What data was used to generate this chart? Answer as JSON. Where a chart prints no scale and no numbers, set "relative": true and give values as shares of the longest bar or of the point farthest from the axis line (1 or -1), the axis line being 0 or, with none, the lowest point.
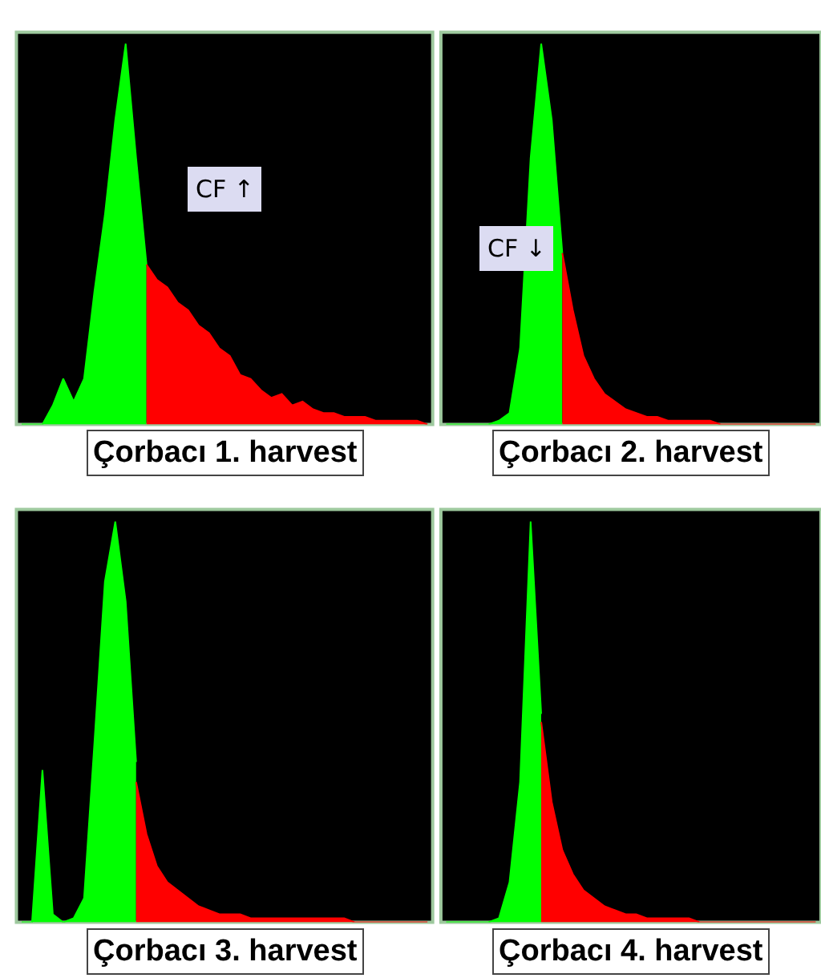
{
  "chart_data": [
    {
      "type": "area",
      "title": "Çorbacı 1. harvest",
      "relative": true,
      "annotations": [
        "CF ↑"
      ],
      "categories": [
        null,
        null,
        null,
        null,
        null,
        null,
        null,
        null,
        null,
        null,
        null,
        null,
        null,
        null,
        null,
        null,
        null,
        null,
        null,
        null,
        null,
        null,
        null,
        null,
        null,
        null,
        null,
        null,
        null,
        null,
        null,
        null,
        null,
        null,
        null,
        null,
        null,
        null,
        null,
        null
      ],
      "series": [
        {
          "color": "#00ff00",
          "values": [
            0,
            0,
            0,
            0.05,
            0.12,
            0.06,
            0.12,
            0.35,
            0.55,
            0.8,
            1.0,
            0.7,
            0.42,
            null,
            null,
            null,
            null,
            null,
            null,
            null,
            null,
            null,
            null,
            null,
            null,
            null,
            null,
            null,
            null,
            null,
            null,
            null,
            null,
            null,
            null,
            null,
            null,
            null,
            null,
            null
          ]
        },
        {
          "color": "#ff0000",
          "values": [
            null,
            null,
            null,
            null,
            null,
            null,
            null,
            null,
            null,
            null,
            null,
            null,
            0.42,
            0.38,
            0.36,
            0.32,
            0.3,
            0.26,
            0.24,
            0.2,
            0.18,
            0.13,
            0.12,
            0.09,
            0.07,
            0.08,
            0.05,
            0.06,
            0.04,
            0.03,
            0.03,
            0.02,
            0.02,
            0.02,
            0.01,
            0.01,
            0.01,
            0.01,
            0.01,
            0
          ]
        }
      ]
    },
    {
      "type": "area",
      "title": "Çorbacı 2. harvest",
      "relative": true,
      "annotations": [
        "CF ↓"
      ],
      "categories": [
        null,
        null,
        null,
        null,
        null,
        null,
        null,
        null,
        null,
        null,
        null,
        null,
        null,
        null,
        null,
        null,
        null,
        null,
        null,
        null,
        null,
        null,
        null,
        null,
        null,
        null,
        null,
        null,
        null,
        null,
        null,
        null,
        null,
        null,
        null,
        null
      ],
      "series": [
        {
          "color": "#00ff00",
          "values": [
            0,
            0,
            0,
            0,
            0,
            0.01,
            0.03,
            0.2,
            0.7,
            1.0,
            0.8,
            0.45,
            null,
            null,
            null,
            null,
            null,
            null,
            null,
            null,
            null,
            null,
            null,
            null,
            null,
            null,
            null,
            null,
            null,
            null,
            null,
            null,
            null,
            null,
            null,
            null
          ]
        },
        {
          "color": "#ff0000",
          "values": [
            null,
            null,
            null,
            null,
            null,
            null,
            null,
            null,
            null,
            null,
            null,
            0.45,
            0.3,
            0.18,
            0.12,
            0.08,
            0.06,
            0.04,
            0.03,
            0.02,
            0.02,
            0.01,
            0.01,
            0.01,
            0.01,
            0.01,
            0,
            0,
            0,
            0,
            0,
            0,
            0,
            0,
            0,
            0
          ]
        }
      ]
    },
    {
      "type": "area",
      "title": "Çorbacı 3. harvest",
      "relative": true,
      "categories": [
        null,
        null,
        null,
        null,
        null,
        null,
        null,
        null,
        null,
        null,
        null,
        null,
        null,
        null,
        null,
        null,
        null,
        null,
        null,
        null,
        null,
        null,
        null,
        null,
        null,
        null,
        null,
        null,
        null,
        null,
        null,
        null,
        null,
        null,
        null,
        null,
        null,
        null,
        null,
        null
      ],
      "series": [
        {
          "color": "#00ff00",
          "values": [
            0,
            0,
            0.38,
            0.02,
            0,
            0.01,
            0.06,
            0.45,
            0.85,
            1.0,
            0.8,
            0.4,
            null,
            null,
            null,
            null,
            null,
            null,
            null,
            null,
            null,
            null,
            null,
            null,
            null,
            null,
            null,
            null,
            null,
            null,
            null,
            null,
            null,
            null,
            null,
            null,
            null,
            null,
            null,
            null
          ]
        },
        {
          "color": "#ff0000",
          "values": [
            null,
            null,
            null,
            null,
            null,
            null,
            null,
            null,
            null,
            null,
            null,
            0.35,
            0.22,
            0.14,
            0.1,
            0.08,
            0.06,
            0.04,
            0.03,
            0.02,
            0.02,
            0.02,
            0.01,
            0.01,
            0.01,
            0.01,
            0.01,
            0.01,
            0.01,
            0.01,
            0.01,
            0.01,
            0,
            0,
            0,
            0,
            0,
            0,
            0,
            0
          ]
        }
      ]
    },
    {
      "type": "area",
      "title": "Çorbacı 4. harvest",
      "relative": true,
      "categories": [
        null,
        null,
        null,
        null,
        null,
        null,
        null,
        null,
        null,
        null,
        null,
        null,
        null,
        null,
        null,
        null,
        null,
        null,
        null,
        null,
        null,
        null,
        null,
        null,
        null,
        null,
        null,
        null,
        null,
        null,
        null,
        null,
        null,
        null,
        null,
        null
      ],
      "series": [
        {
          "color": "#00ff00",
          "values": [
            0,
            0,
            0,
            0,
            0,
            0.01,
            0.1,
            0.35,
            1.0,
            0.52,
            null,
            null,
            null,
            null,
            null,
            null,
            null,
            null,
            null,
            null,
            null,
            null,
            null,
            null,
            null,
            null,
            null,
            null,
            null,
            null,
            null,
            null,
            null,
            null,
            null,
            null
          ]
        },
        {
          "color": "#ff0000",
          "values": [
            null,
            null,
            null,
            null,
            null,
            null,
            null,
            null,
            null,
            0.5,
            0.3,
            0.18,
            0.12,
            0.08,
            0.06,
            0.04,
            0.03,
            0.02,
            0.02,
            0.01,
            0.01,
            0.01,
            0.01,
            0.01,
            0,
            0,
            0,
            0,
            0,
            0,
            0,
            0,
            0,
            0,
            0,
            0
          ]
        }
      ]
    }
  ]
}
